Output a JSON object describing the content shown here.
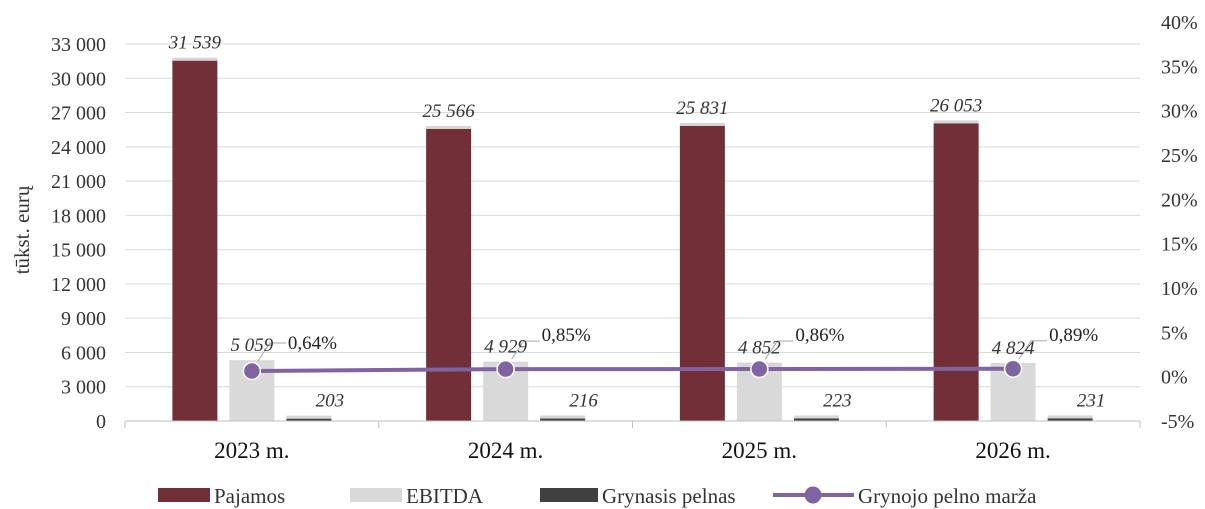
{
  "chart_data": {
    "type": "bar",
    "categories": [
      "2023 m.",
      "2024 m.",
      "2025 m.",
      "2026 m."
    ],
    "series": [
      {
        "name": "Pajamos",
        "values": [
          31539,
          25566,
          25831,
          26053
        ],
        "labels": [
          "31 539",
          "25 566",
          "25 831",
          "26 053"
        ],
        "color": "#722F37"
      },
      {
        "name": "EBITDA",
        "values": [
          5059,
          4929,
          4852,
          4824
        ],
        "labels": [
          "5 059",
          "4 929",
          "4 852",
          "4 824"
        ],
        "color": "#D9D9D9"
      },
      {
        "name": "Grynasis pelnas",
        "values": [
          203,
          216,
          223,
          231
        ],
        "labels": [
          "203",
          "216",
          "223",
          "231"
        ],
        "color": "#404040"
      }
    ],
    "line_series": {
      "name": "Grynojo pelno marža",
      "values": [
        0.64,
        0.85,
        0.86,
        0.89
      ],
      "labels": [
        "0,64%",
        "0,85%",
        "0,86%",
        "0,89%"
      ],
      "color": "#8064A2"
    },
    "ylabel": "tūkst. eurų",
    "ylim": [
      0,
      33000
    ],
    "yticks": [
      "0",
      "3 000",
      "6 000",
      "9 000",
      "12 000",
      "15 000",
      "18 000",
      "21 000",
      "24 000",
      "27 000",
      "30 000",
      "33 000"
    ],
    "y2lim": [
      -5,
      40
    ],
    "y2ticks": [
      "-5%",
      "0%",
      "5%",
      "10%",
      "15%",
      "20%",
      "25%",
      "30%",
      "35%",
      "40%"
    ],
    "grid": true,
    "legend_position": "bottom"
  }
}
